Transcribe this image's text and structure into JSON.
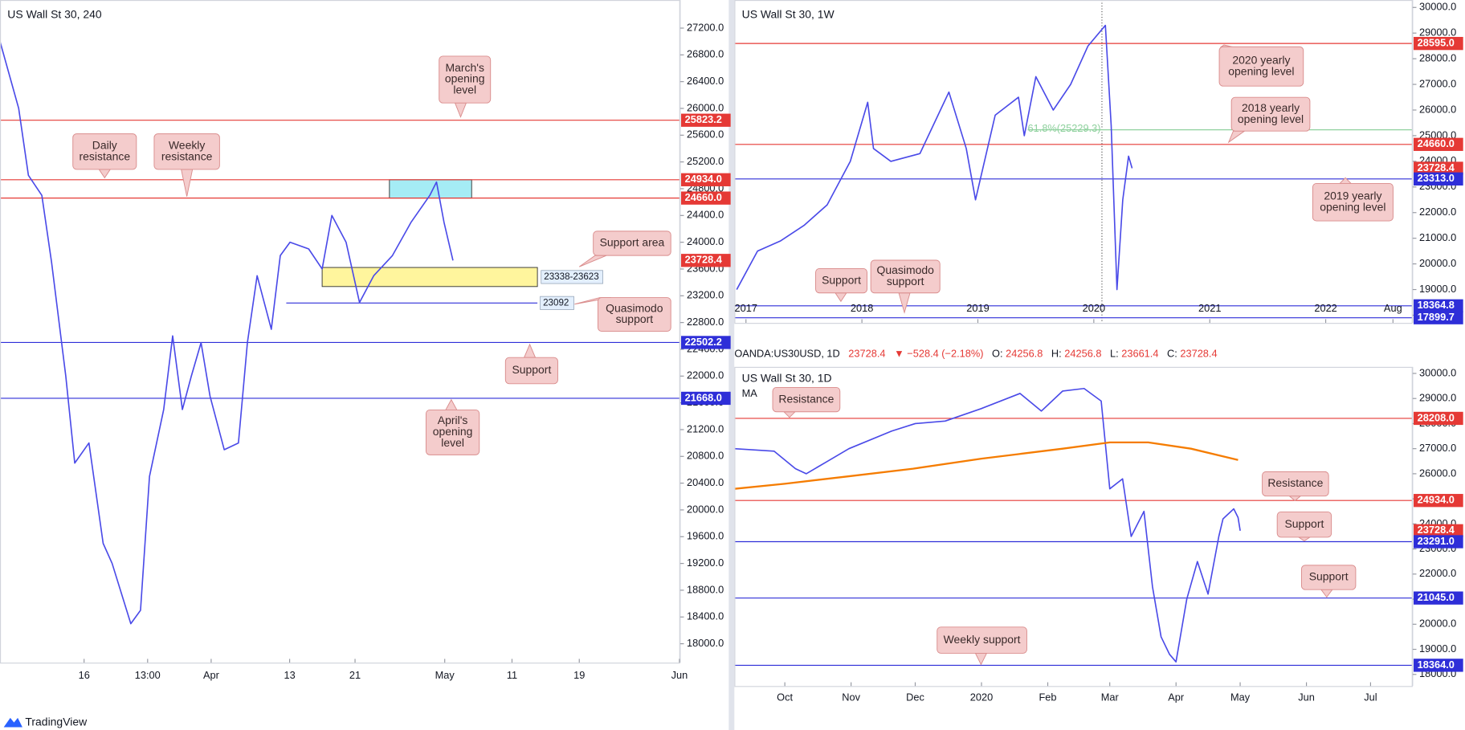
{
  "chart_data": [
    {
      "type": "line",
      "title": "US Wall St 30, 240",
      "color": "#4a4ae8",
      "xlim": [
        0,
        91
      ],
      "ylim": [
        17718,
        27620
      ],
      "xticks": [
        {
          "value": 11.25,
          "label": "16"
        },
        {
          "value": 19.75,
          "label": "13:00"
        },
        {
          "value": 28.25,
          "label": "Apr"
        },
        {
          "value": 38.75,
          "label": "13"
        },
        {
          "value": 47.5,
          "label": "21"
        },
        {
          "value": 59.5,
          "label": "May"
        },
        {
          "value": 68.5,
          "label": "11"
        },
        {
          "value": 77.5,
          "label": "19"
        },
        {
          "value": 90.9,
          "label": "Jun"
        }
      ],
      "yticks": [
        {
          "value": 18000,
          "label": "18000.0"
        },
        {
          "value": 18400,
          "label": "18400.0"
        },
        {
          "value": 18800,
          "label": "18800.0"
        },
        {
          "value": 19200,
          "label": "19200.0"
        },
        {
          "value": 19600,
          "label": "19600.0"
        },
        {
          "value": 20000,
          "label": "20000.0"
        },
        {
          "value": 20400,
          "label": "20400.0"
        },
        {
          "value": 20800,
          "label": "20800.0"
        },
        {
          "value": 21200,
          "label": "21200.0"
        },
        {
          "value": 21600,
          "label": "21600.0"
        },
        {
          "value": 22000,
          "label": "22000.0"
        },
        {
          "value": 22400,
          "label": "22400.0"
        },
        {
          "value": 22800,
          "label": "22800.0"
        },
        {
          "value": 23200,
          "label": "23200.0"
        },
        {
          "value": 23600,
          "label": "23600.0"
        },
        {
          "value": 24000,
          "label": "24000.0"
        },
        {
          "value": 24400,
          "label": "24400.0"
        },
        {
          "value": 24800,
          "label": "24800.0"
        },
        {
          "value": 25200,
          "label": "25200.0"
        },
        {
          "value": 25600,
          "label": "25600.0"
        },
        {
          "value": 26000,
          "label": "26000.0"
        },
        {
          "value": 26400,
          "label": "26400.0"
        },
        {
          "value": 26800,
          "label": "26800.0"
        },
        {
          "value": 27200,
          "label": "27200.0"
        }
      ],
      "x": [
        0,
        2.5,
        3.8,
        5.6,
        6.9,
        8.8,
        10,
        11.9,
        13.8,
        15,
        17.5,
        18.8,
        20,
        21.9,
        23.1,
        24.4,
        25.6,
        26.9,
        28.1,
        30,
        31.9,
        33.1,
        34.4,
        36.3,
        37.5,
        38.8,
        41.3,
        43.1,
        44.4,
        46.3,
        48.1,
        50,
        52.5,
        55,
        57.5,
        58.4,
        59.4,
        60.6
      ],
      "values": [
        27000,
        26000,
        25000,
        24700,
        23700,
        22000,
        20700,
        21000,
        19500,
        19200,
        18300,
        18500,
        20500,
        21500,
        22600,
        21500,
        22000,
        22500,
        21700,
        20900,
        21000,
        22500,
        23500,
        22700,
        23800,
        24000,
        23900,
        23600,
        24400,
        24000,
        23100,
        23500,
        23800,
        24300,
        24700,
        24900,
        24300,
        23728.4
      ],
      "zones": [
        {
          "low": 23338,
          "high": 23623,
          "label": "23338-23623",
          "color": "#fff59d",
          "x_from": 43.1,
          "x_to": 71.9
        },
        {
          "low": 24660,
          "high": 24934,
          "color": "#a5ecf5",
          "x_from": 52.1,
          "x_to": 63.1
        }
      ],
      "levels": [
        {
          "value": 25823.2,
          "color": "#e53935"
        },
        {
          "value": 24934,
          "label": "24934.0",
          "color": "#e53935"
        },
        {
          "value": 24660,
          "label": "24660.0",
          "color": "#e53935"
        },
        {
          "value": 23728.4,
          "color": "#e53935",
          "style": "price"
        },
        {
          "value": 22502.2,
          "color": "#2e2ed8"
        },
        {
          "value": 21668,
          "label": "21668.0",
          "color": "#2e2ed8"
        },
        {
          "value": 23092,
          "color": "#2e2ed8",
          "style": "short",
          "x_from": 38.3,
          "x_to": 71.9
        }
      ],
      "annotations": [
        {
          "text": [
            "March's",
            "opening",
            "level"
          ]
        },
        {
          "text": [
            "Daily",
            "resistance"
          ]
        },
        {
          "text": [
            "Weekly",
            "resistance"
          ]
        },
        {
          "text": [
            "Support area"
          ]
        },
        {
          "text": [
            "Quasimodo",
            "support"
          ]
        },
        {
          "text": [
            "Support"
          ]
        },
        {
          "text": [
            "April's",
            "opening",
            "level"
          ]
        }
      ]
    },
    {
      "type": "line",
      "title": "US Wall St 30, 1W",
      "color": "#4a4ae8",
      "xlim": [
        2016.9,
        2022.75
      ],
      "ylim": [
        17700,
        30290
      ],
      "xticks": [
        2017,
        2018,
        2019,
        2020,
        2021,
        2022,
        {
          "value": 2022.58,
          "label": "Aug"
        }
      ],
      "yticks": [
        {
          "value": 18000,
          "label": "18000.0"
        },
        {
          "value": 19000,
          "label": "19000.0"
        },
        {
          "value": 20000,
          "label": "20000.0"
        },
        {
          "value": 21000,
          "label": "21000.0"
        },
        {
          "value": 22000,
          "label": "22000.0"
        },
        {
          "value": 23000,
          "label": "23000.0"
        },
        {
          "value": 24000,
          "label": "24000.0"
        },
        {
          "value": 25000,
          "label": "25000.0"
        },
        {
          "value": 26000,
          "label": "26000.0"
        },
        {
          "value": 27000,
          "label": "27000.0"
        },
        {
          "value": 28000,
          "label": "28000.0"
        },
        {
          "value": 29000,
          "label": "29000.0"
        },
        {
          "value": 30000,
          "label": "30000.0"
        }
      ],
      "x": [
        2016.92,
        2017.1,
        2017.3,
        2017.5,
        2017.7,
        2017.9,
        2018.05,
        2018.1,
        2018.25,
        2018.5,
        2018.75,
        2018.9,
        2018.98,
        2019.15,
        2019.35,
        2019.4,
        2019.5,
        2019.65,
        2019.8,
        2019.95,
        2020.1,
        2020.15,
        2020.2,
        2020.25,
        2020.3,
        2020.33
      ],
      "values": [
        19000,
        20500,
        20900,
        21500,
        22300,
        24000,
        26300,
        24500,
        24000,
        24300,
        26700,
        24500,
        22500,
        25800,
        26500,
        25000,
        27300,
        26000,
        27000,
        28500,
        29300,
        25400,
        19000,
        22500,
        24200,
        23728.4
      ],
      "vlines": [
        {
          "x": 2020.07,
          "style": "dotted"
        }
      ],
      "levels": [
        {
          "value": 28595,
          "label": "28595.0",
          "color": "#e53935"
        },
        {
          "value": 24660,
          "label": "24660.0",
          "color": "#e53935"
        },
        {
          "value": 23728.4,
          "color": "#e53935",
          "style": "price"
        },
        {
          "value": 23313,
          "label": "23313.0",
          "color": "#2e2ed8"
        },
        {
          "value": 18364.8,
          "color": "#2e2ed8"
        },
        {
          "value": 17899.7,
          "color": "#2e2ed8"
        },
        {
          "value": 25229.3,
          "label": "61.8%(25229.3)",
          "color": "#8fd19e",
          "style": "fib",
          "x_from": 2019.43
        }
      ],
      "annotations": [
        {
          "text": [
            "2020 yearly",
            "opening level"
          ]
        },
        {
          "text": [
            "2018 yearly",
            "opening level"
          ]
        },
        {
          "text": [
            "2019 yearly",
            "opening level"
          ]
        },
        {
          "text": [
            "Support"
          ]
        },
        {
          "text": [
            "Quasimodo",
            "support"
          ]
        }
      ]
    },
    {
      "type": "line",
      "title": "US Wall St 30, 1D",
      "color": "#4a4ae8",
      "xlim": [
        -23.6,
        293.7
      ],
      "ylim": [
        17537,
        30261
      ],
      "xticks": [
        {
          "value": 0,
          "label": "Oct"
        },
        {
          "value": 31,
          "label": "Nov"
        },
        {
          "value": 61,
          "label": "Dec"
        },
        {
          "value": 92,
          "label": "2020"
        },
        {
          "value": 123,
          "label": "Feb"
        },
        {
          "value": 152,
          "label": "Mar"
        },
        {
          "value": 183,
          "label": "Apr"
        },
        {
          "value": 213,
          "label": "May"
        },
        {
          "value": 244,
          "label": "Jun"
        },
        {
          "value": 274,
          "label": "Jul"
        }
      ],
      "yticks": [
        {
          "value": 18000,
          "label": "18000.0"
        },
        {
          "value": 19000,
          "label": "19000.0"
        },
        {
          "value": 20000,
          "label": "20000.0"
        },
        {
          "value": 21000,
          "label": "21000.0"
        },
        {
          "value": 22000,
          "label": "22000.0"
        },
        {
          "value": 23000,
          "label": "23000.0"
        },
        {
          "value": 24000,
          "label": "24000.0"
        },
        {
          "value": 25000,
          "label": "25000.0"
        },
        {
          "value": 26000,
          "label": "26000.0"
        },
        {
          "value": 27000,
          "label": "27000.0"
        },
        {
          "value": 28000,
          "label": "28000.0"
        },
        {
          "value": 29000,
          "label": "29000.0"
        },
        {
          "value": 30000,
          "label": "30000.0"
        }
      ],
      "x": [
        -23.6,
        -5,
        5,
        10,
        20,
        30,
        50,
        61,
        75,
        92,
        110,
        120,
        130,
        140,
        148,
        152,
        158,
        162,
        168,
        172,
        176,
        180,
        183,
        188,
        193,
        198,
        203,
        205,
        210,
        212,
        213
      ],
      "values": [
        27000,
        26900,
        26200,
        26000,
        26500,
        27000,
        27700,
        28000,
        28100,
        28600,
        29200,
        28500,
        29300,
        29400,
        28900,
        25400,
        25800,
        23500,
        24500,
        21500,
        19500,
        18800,
        18500,
        21000,
        22500,
        21200,
        23500,
        24200,
        24600,
        24256.8,
        23728.4
      ],
      "ma": {
        "name": "MA",
        "color": "#f57c00",
        "x": [
          -23.6,
          0,
          30,
          60,
          92,
          130,
          152,
          170,
          190,
          212
        ],
        "values": [
          25400,
          25600,
          25900,
          26200,
          26600,
          27000,
          27250,
          27250,
          27000,
          26550
        ]
      },
      "levels": [
        {
          "value": 28208,
          "label": "28208.0",
          "color": "#e53935"
        },
        {
          "value": 24934,
          "label": "24934.0",
          "color": "#e53935"
        },
        {
          "value": 23728.4,
          "color": "#e53935",
          "style": "price"
        },
        {
          "value": 23291,
          "label": "23291.0",
          "color": "#2e2ed8"
        },
        {
          "value": 21045,
          "label": "21045.0",
          "color": "#2e2ed8"
        },
        {
          "value": 18364,
          "label": "18364.0",
          "color": "#2e2ed8"
        }
      ],
      "annotations": [
        {
          "text": [
            "Resistance"
          ]
        },
        {
          "text": [
            "Resistance"
          ]
        },
        {
          "text": [
            "Support"
          ]
        },
        {
          "text": [
            "Support"
          ]
        },
        {
          "text": [
            "Weekly support"
          ]
        }
      ]
    }
  ],
  "info_bar": {
    "symbol": "OANDA:US30USD, 1D",
    "last": "23728.4",
    "change": "▼ −528.4 (−2.18%)",
    "o_label": "O:",
    "open": "24256.8",
    "h_label": "H:",
    "high": "24256.8",
    "l_label": "L:",
    "low": "23661.4",
    "c_label": "C:",
    "close": "23728.4"
  },
  "footer": {
    "brand": "TradingView"
  }
}
